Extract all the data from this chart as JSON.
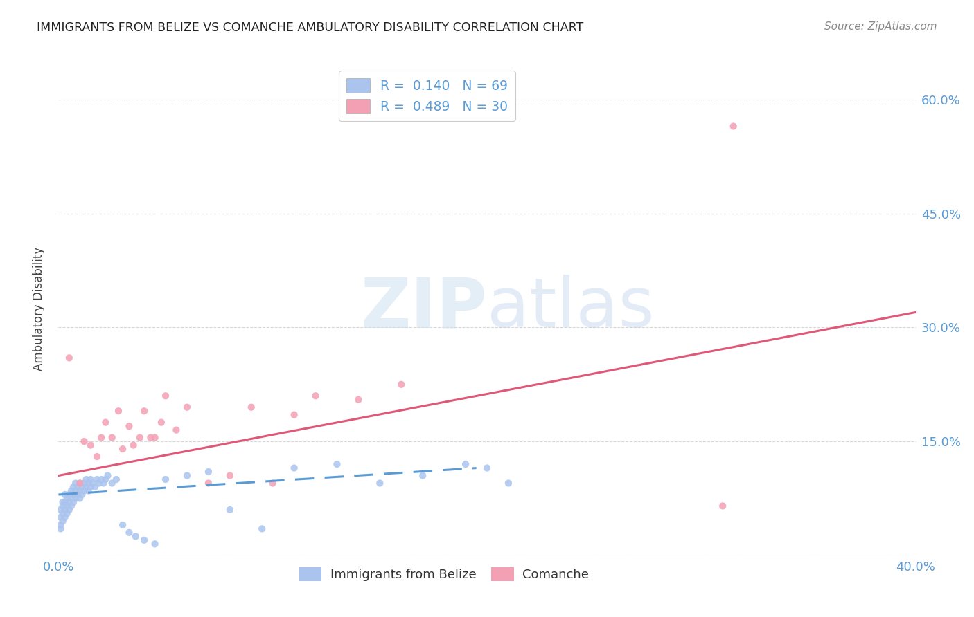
{
  "title": "IMMIGRANTS FROM BELIZE VS COMANCHE AMBULATORY DISABILITY CORRELATION CHART",
  "source": "Source: ZipAtlas.com",
  "ylabel": "Ambulatory Disability",
  "xlim": [
    0.0,
    0.4
  ],
  "ylim": [
    0.0,
    0.65
  ],
  "xtick_pos": [
    0.0,
    0.05,
    0.1,
    0.15,
    0.2,
    0.25,
    0.3,
    0.35,
    0.4
  ],
  "ytick_pos": [
    0.0,
    0.15,
    0.3,
    0.45,
    0.6
  ],
  "ytick_labels": [
    "",
    "15.0%",
    "30.0%",
    "45.0%",
    "60.0%"
  ],
  "color_belize": "#aac4ee",
  "color_comanche": "#f4a0b4",
  "line_color_belize": "#5b9bd5",
  "line_color_comanche": "#e05878",
  "tick_color": "#5b9bd5",
  "grid_color": "#d8d8d8",
  "watermark_color": "#cfe0f0",
  "belize_x": [
    0.001,
    0.001,
    0.001,
    0.001,
    0.002,
    0.002,
    0.002,
    0.002,
    0.003,
    0.003,
    0.003,
    0.003,
    0.004,
    0.004,
    0.004,
    0.005,
    0.005,
    0.005,
    0.006,
    0.006,
    0.006,
    0.007,
    0.007,
    0.007,
    0.008,
    0.008,
    0.008,
    0.009,
    0.009,
    0.01,
    0.01,
    0.01,
    0.011,
    0.011,
    0.012,
    0.012,
    0.013,
    0.013,
    0.014,
    0.014,
    0.015,
    0.015,
    0.016,
    0.017,
    0.018,
    0.019,
    0.02,
    0.021,
    0.022,
    0.023,
    0.025,
    0.027,
    0.03,
    0.033,
    0.036,
    0.04,
    0.045,
    0.05,
    0.06,
    0.07,
    0.08,
    0.095,
    0.11,
    0.13,
    0.15,
    0.17,
    0.19,
    0.2,
    0.21
  ],
  "belize_y": [
    0.035,
    0.04,
    0.05,
    0.06,
    0.045,
    0.055,
    0.065,
    0.07,
    0.05,
    0.06,
    0.07,
    0.08,
    0.055,
    0.065,
    0.075,
    0.06,
    0.07,
    0.08,
    0.065,
    0.075,
    0.085,
    0.07,
    0.08,
    0.09,
    0.075,
    0.085,
    0.095,
    0.08,
    0.09,
    0.075,
    0.085,
    0.095,
    0.08,
    0.09,
    0.085,
    0.095,
    0.09,
    0.1,
    0.085,
    0.095,
    0.09,
    0.1,
    0.095,
    0.09,
    0.1,
    0.095,
    0.1,
    0.095,
    0.1,
    0.105,
    0.095,
    0.1,
    0.04,
    0.03,
    0.025,
    0.02,
    0.015,
    0.1,
    0.105,
    0.11,
    0.06,
    0.035,
    0.115,
    0.12,
    0.095,
    0.105,
    0.12,
    0.115,
    0.095
  ],
  "comanche_x": [
    0.005,
    0.01,
    0.012,
    0.015,
    0.018,
    0.02,
    0.022,
    0.025,
    0.028,
    0.03,
    0.033,
    0.035,
    0.038,
    0.04,
    0.043,
    0.045,
    0.048,
    0.05,
    0.055,
    0.06,
    0.07,
    0.08,
    0.09,
    0.1,
    0.11,
    0.12,
    0.14,
    0.16,
    0.31,
    0.315
  ],
  "comanche_y": [
    0.26,
    0.095,
    0.15,
    0.145,
    0.13,
    0.155,
    0.175,
    0.155,
    0.19,
    0.14,
    0.17,
    0.145,
    0.155,
    0.19,
    0.155,
    0.155,
    0.175,
    0.21,
    0.165,
    0.195,
    0.095,
    0.105,
    0.195,
    0.095,
    0.185,
    0.21,
    0.205,
    0.225,
    0.065,
    0.565
  ],
  "belize_line_x": [
    0.0,
    0.195
  ],
  "belize_line_y": [
    0.08,
    0.115
  ],
  "comanche_line_x": [
    0.0,
    0.4
  ],
  "comanche_line_y": [
    0.105,
    0.32
  ]
}
